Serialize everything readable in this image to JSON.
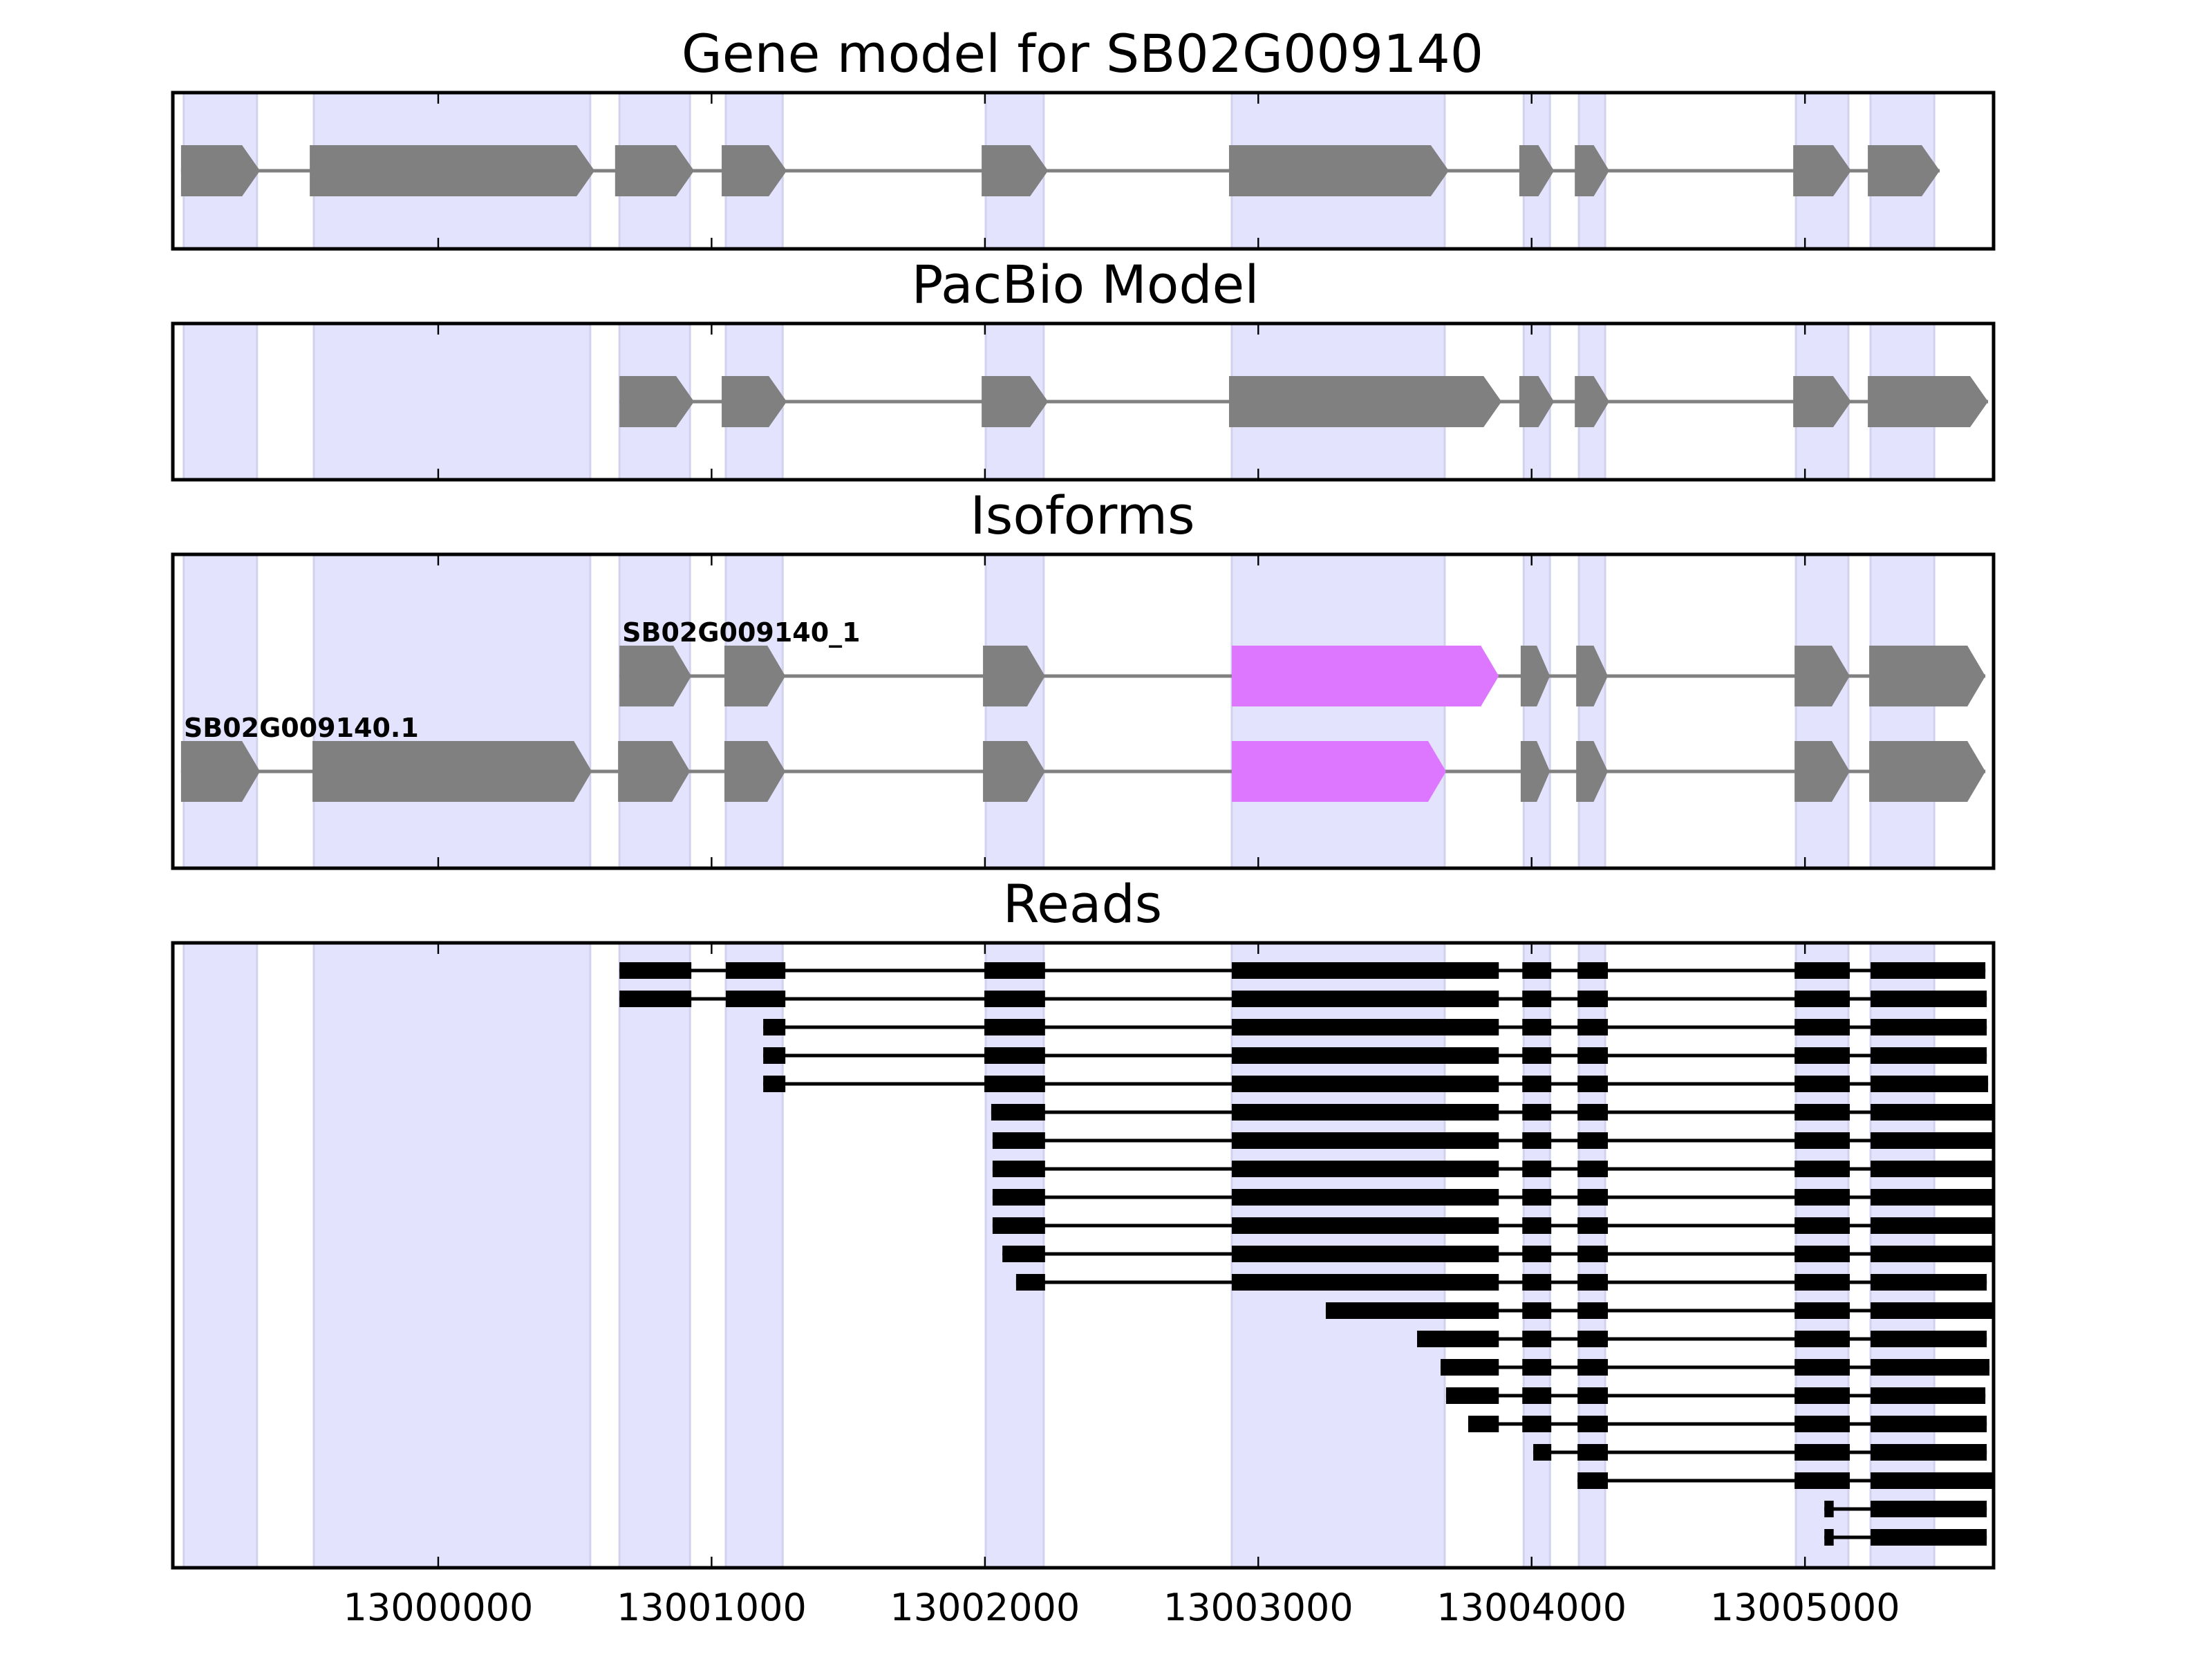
{
  "chart_data": {
    "type": "gene-track",
    "xlim": [
      12999029,
      13005690
    ],
    "xticks": [
      13000000,
      13001000,
      13002000,
      13003000,
      13004000,
      13005000
    ],
    "xtick_labels": [
      "13000000",
      "13001000",
      "13002000",
      "13003000",
      "13004000",
      "13005000"
    ],
    "colors": {
      "exon": "#808080",
      "highlight": "#dd77ff",
      "shade": "#e3e3fd",
      "read": "#000000"
    },
    "shaded_regions": [
      [
        12999069,
        12999337
      ],
      [
        12999545,
        13000556
      ],
      [
        13000663,
        13000921
      ],
      [
        13001052,
        13001260
      ],
      [
        13002003,
        13002215
      ],
      [
        13002903,
        13003682
      ],
      [
        13003971,
        13004067
      ],
      [
        13004173,
        13004269
      ],
      [
        13004967,
        13005159
      ],
      [
        13005240,
        13005473
      ]
    ],
    "panels": [
      {
        "title": "Gene model for SB02G009140",
        "kind": "model",
        "rows": [
          {
            "label": "",
            "exons": [
              [
                12999059,
                12999348
              ],
              [
                12999530,
                13000572
              ],
              [
                13000647,
                13000936
              ],
              [
                13001037,
                13001275
              ],
              [
                13001988,
                13002231
              ],
              [
                13002893,
                13003697
              ],
              [
                13003955,
                13004082
              ],
              [
                13004158,
                13004284
              ],
              [
                13004957,
                13005169
              ],
              [
                13005230,
                13005493
              ]
            ],
            "highlight": []
          }
        ]
      },
      {
        "title": "PacBio Model",
        "kind": "model",
        "rows": [
          {
            "label": "",
            "exons": [
              [
                13000663,
                13000936
              ],
              [
                13001037,
                13001275
              ],
              [
                13001988,
                13002231
              ],
              [
                13002893,
                13003890
              ],
              [
                13003955,
                13004082
              ],
              [
                13004158,
                13004284
              ],
              [
                13004957,
                13005169
              ],
              [
                13005230,
                13005670
              ]
            ],
            "highlight": []
          }
        ]
      },
      {
        "title": "Isoforms",
        "kind": "isoforms",
        "rows": [
          {
            "label": "SB02G009140_1",
            "exons": [
              [
                13000663,
                13000926
              ],
              [
                13001047,
                13001270
              ],
              [
                13001993,
                13002220
              ],
              [
                13002903,
                13003880
              ],
              [
                13003960,
                13004067
              ],
              [
                13004163,
                13004279
              ],
              [
                13004962,
                13005164
              ],
              [
                13005235,
                13005660
              ]
            ],
            "highlight": [
              3
            ]
          },
          {
            "label": "SB02G009140.1",
            "exons": [
              [
                12999059,
                12999348
              ],
              [
                12999540,
                13000562
              ],
              [
                13000658,
                13000921
              ],
              [
                13001047,
                13001270
              ],
              [
                13001993,
                13002220
              ],
              [
                13002903,
                13003687
              ],
              [
                13003960,
                13004067
              ],
              [
                13004163,
                13004279
              ],
              [
                13004962,
                13005164
              ],
              [
                13005235,
                13005660
              ]
            ],
            "highlight": [
              5
            ]
          }
        ]
      },
      {
        "title": "Reads",
        "kind": "reads",
        "rows": [
          [
            [
              13000663,
              13000926
            ],
            [
              13001052,
              13001270
            ],
            [
              13001998,
              13002220
            ],
            [
              13002903,
              13003880
            ],
            [
              13003966,
              13004072
            ],
            [
              13004168,
              13004279
            ],
            [
              13004962,
              13005164
            ],
            [
              13005240,
              13005660
            ]
          ],
          [
            [
              13000663,
              13000926
            ],
            [
              13001052,
              13001270
            ],
            [
              13001998,
              13002220
            ],
            [
              13002903,
              13003880
            ],
            [
              13003966,
              13004072
            ],
            [
              13004168,
              13004279
            ],
            [
              13004962,
              13005164
            ],
            [
              13005240,
              13005665
            ]
          ],
          [
            [
              13001189,
              13001270
            ],
            [
              13001998,
              13002220
            ],
            [
              13002903,
              13003880
            ],
            [
              13003966,
              13004072
            ],
            [
              13004168,
              13004279
            ],
            [
              13004962,
              13005164
            ],
            [
              13005240,
              13005665
            ]
          ],
          [
            [
              13001189,
              13001270
            ],
            [
              13001998,
              13002220
            ],
            [
              13002903,
              13003880
            ],
            [
              13003966,
              13004072
            ],
            [
              13004168,
              13004279
            ],
            [
              13004962,
              13005164
            ],
            [
              13005240,
              13005665
            ]
          ],
          [
            [
              13001189,
              13001270
            ],
            [
              13001998,
              13002220
            ],
            [
              13002903,
              13003880
            ],
            [
              13003966,
              13004072
            ],
            [
              13004168,
              13004279
            ],
            [
              13004962,
              13005164
            ],
            [
              13005240,
              13005670
            ]
          ],
          [
            [
              13002023,
              13002220
            ],
            [
              13002903,
              13003880
            ],
            [
              13003966,
              13004072
            ],
            [
              13004168,
              13004279
            ],
            [
              13004962,
              13005164
            ],
            [
              13005240,
              13005720
            ]
          ],
          [
            [
              13002028,
              13002220
            ],
            [
              13002903,
              13003880
            ],
            [
              13003966,
              13004072
            ],
            [
              13004168,
              13004279
            ],
            [
              13004962,
              13005164
            ],
            [
              13005240,
              13005720
            ]
          ],
          [
            [
              13002028,
              13002220
            ],
            [
              13002903,
              13003880
            ],
            [
              13003966,
              13004072
            ],
            [
              13004168,
              13004279
            ],
            [
              13004962,
              13005164
            ],
            [
              13005240,
              13005720
            ]
          ],
          [
            [
              13002028,
              13002220
            ],
            [
              13002903,
              13003880
            ],
            [
              13003966,
              13004072
            ],
            [
              13004168,
              13004279
            ],
            [
              13004962,
              13005164
            ],
            [
              13005240,
              13005720
            ]
          ],
          [
            [
              13002028,
              13002220
            ],
            [
              13002903,
              13003880
            ],
            [
              13003966,
              13004072
            ],
            [
              13004168,
              13004279
            ],
            [
              13004962,
              13005164
            ],
            [
              13005240,
              13005720
            ]
          ],
          [
            [
              13002064,
              13002220
            ],
            [
              13002903,
              13003880
            ],
            [
              13003966,
              13004072
            ],
            [
              13004168,
              13004279
            ],
            [
              13004962,
              13005164
            ],
            [
              13005240,
              13005720
            ]
          ],
          [
            [
              13002114,
              13002220
            ],
            [
              13002903,
              13003880
            ],
            [
              13003966,
              13004072
            ],
            [
              13004168,
              13004279
            ],
            [
              13004962,
              13005164
            ],
            [
              13005240,
              13005665
            ]
          ],
          [
            [
              13003247,
              13003880
            ],
            [
              13003966,
              13004072
            ],
            [
              13004168,
              13004279
            ],
            [
              13004962,
              13005164
            ],
            [
              13005240,
              13005720
            ]
          ],
          [
            [
              13003581,
              13003880
            ],
            [
              13003966,
              13004072
            ],
            [
              13004168,
              13004279
            ],
            [
              13004962,
              13005164
            ],
            [
              13005240,
              13005665
            ]
          ],
          [
            [
              13003667,
              13003880
            ],
            [
              13003966,
              13004072
            ],
            [
              13004168,
              13004279
            ],
            [
              13004962,
              13005164
            ],
            [
              13005240,
              13005675
            ]
          ],
          [
            [
              13003687,
              13003880
            ],
            [
              13003966,
              13004072
            ],
            [
              13004168,
              13004279
            ],
            [
              13004962,
              13005164
            ],
            [
              13005240,
              13005660
            ]
          ],
          [
            [
              13003768,
              13003880
            ],
            [
              13003966,
              13004072
            ],
            [
              13004168,
              13004279
            ],
            [
              13004962,
              13005164
            ],
            [
              13005240,
              13005665
            ]
          ],
          [
            [
              13004006,
              13004072
            ],
            [
              13004168,
              13004279
            ],
            [
              13004962,
              13005164
            ],
            [
              13005240,
              13005665
            ]
          ],
          [
            [
              13004168,
              13004279
            ],
            [
              13004962,
              13005164
            ],
            [
              13005240,
              13005720
            ]
          ],
          [
            [
              13005071,
              13005105
            ],
            [
              13005240,
              13005665
            ]
          ],
          [
            [
              13005071,
              13005105
            ],
            [
              13005240,
              13005665
            ]
          ]
        ]
      }
    ]
  }
}
